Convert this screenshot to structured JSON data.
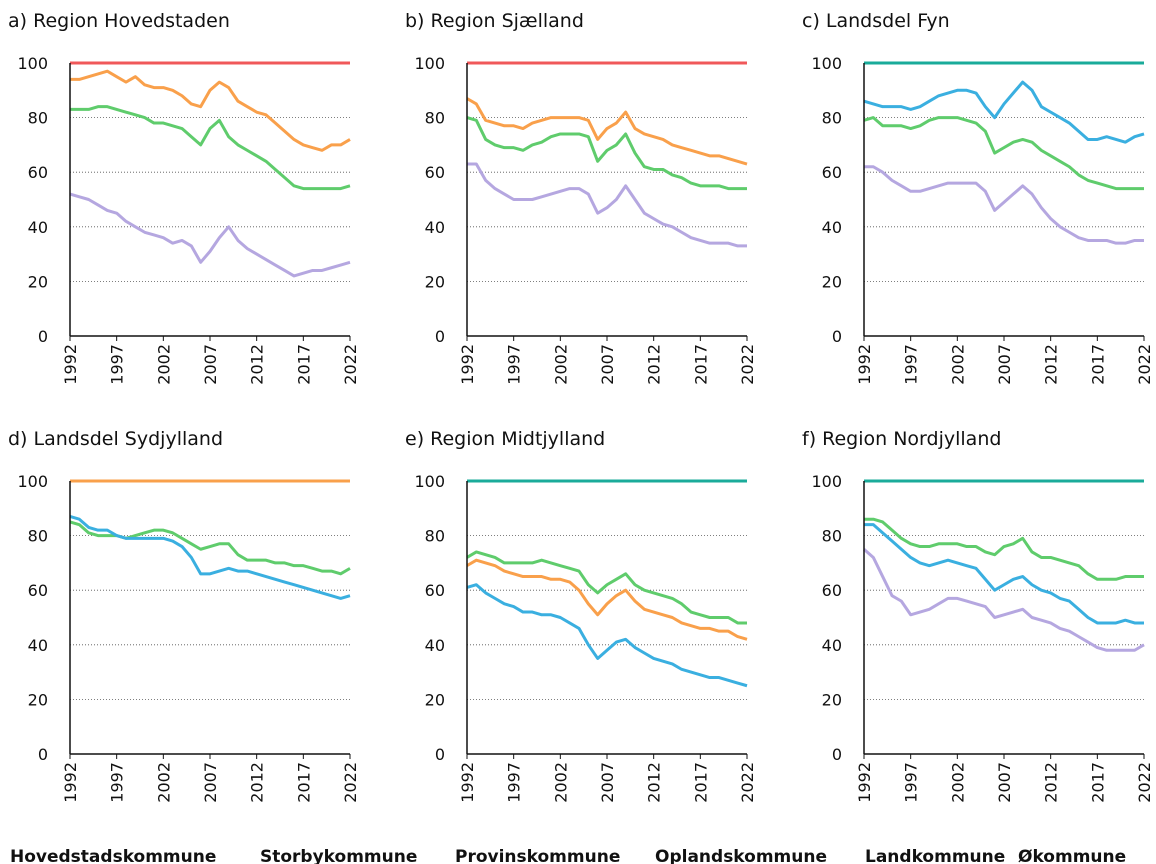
{
  "legend": [
    {
      "name": "Hovedstadskommune",
      "color": "#f0585a"
    },
    {
      "name": "Storbykommune",
      "color": "#1aab9a"
    },
    {
      "name": "Provinskommune",
      "color": "#f9a04b"
    },
    {
      "name": "Oplandskommune",
      "color": "#5fcc6c"
    },
    {
      "name": "Landkommune",
      "color": "#3aafe0"
    },
    {
      "name": "Økommune",
      "color": "#b5a7e0"
    }
  ],
  "chart_data": [
    {
      "type": "line",
      "title": "a) Region Hovedstaden",
      "x": [
        1992,
        1993,
        1994,
        1995,
        1996,
        1997,
        1998,
        1999,
        2000,
        2001,
        2002,
        2003,
        2004,
        2005,
        2006,
        2007,
        2008,
        2009,
        2010,
        2011,
        2012,
        2013,
        2014,
        2015,
        2016,
        2017,
        2018,
        2019,
        2020,
        2021,
        2022
      ],
      "xlim": [
        1992,
        2022
      ],
      "xticks": [
        1992,
        1997,
        2002,
        2007,
        2012,
        2017,
        2022
      ],
      "ylim": [
        0,
        100
      ],
      "yticks": [
        0,
        20,
        40,
        60,
        80,
        100
      ],
      "grid": true,
      "series": [
        {
          "color": "#f0585a",
          "values": [
            100,
            100,
            100,
            100,
            100,
            100,
            100,
            100,
            100,
            100,
            100,
            100,
            100,
            100,
            100,
            100,
            100,
            100,
            100,
            100,
            100,
            100,
            100,
            100,
            100,
            100,
            100,
            100,
            100,
            100,
            100
          ]
        },
        {
          "color": "#f9a04b",
          "values": [
            94,
            94,
            95,
            96,
            97,
            95,
            93,
            95,
            92,
            91,
            91,
            90,
            88,
            85,
            84,
            90,
            93,
            91,
            86,
            84,
            82,
            81,
            78,
            75,
            72,
            70,
            69,
            68,
            70,
            70,
            72
          ]
        },
        {
          "color": "#5fcc6c",
          "values": [
            83,
            83,
            83,
            84,
            84,
            83,
            82,
            81,
            80,
            78,
            78,
            77,
            76,
            73,
            70,
            76,
            79,
            73,
            70,
            68,
            66,
            64,
            61,
            58,
            55,
            54,
            54,
            54,
            54,
            54,
            55
          ]
        },
        {
          "color": "#b5a7e0",
          "values": [
            52,
            51,
            50,
            48,
            46,
            45,
            42,
            40,
            38,
            37,
            36,
            34,
            35,
            33,
            27,
            31,
            36,
            40,
            35,
            32,
            30,
            28,
            26,
            24,
            22,
            23,
            24,
            24,
            25,
            26,
            27
          ]
        }
      ]
    },
    {
      "type": "line",
      "title": "b) Region Sjælland",
      "x": [
        1992,
        1993,
        1994,
        1995,
        1996,
        1997,
        1998,
        1999,
        2000,
        2001,
        2002,
        2003,
        2004,
        2005,
        2006,
        2007,
        2008,
        2009,
        2010,
        2011,
        2012,
        2013,
        2014,
        2015,
        2016,
        2017,
        2018,
        2019,
        2020,
        2021,
        2022
      ],
      "xlim": [
        1992,
        2022
      ],
      "xticks": [
        1992,
        1997,
        2002,
        2007,
        2012,
        2017,
        2022
      ],
      "ylim": [
        0,
        100
      ],
      "yticks": [
        0,
        20,
        40,
        60,
        80,
        100
      ],
      "grid": true,
      "series": [
        {
          "color": "#f0585a",
          "values": [
            100,
            100,
            100,
            100,
            100,
            100,
            100,
            100,
            100,
            100,
            100,
            100,
            100,
            100,
            100,
            100,
            100,
            100,
            100,
            100,
            100,
            100,
            100,
            100,
            100,
            100,
            100,
            100,
            100,
            100,
            100
          ]
        },
        {
          "color": "#f9a04b",
          "values": [
            87,
            85,
            79,
            78,
            77,
            77,
            76,
            78,
            79,
            80,
            80,
            80,
            80,
            79,
            72,
            76,
            78,
            82,
            76,
            74,
            73,
            72,
            70,
            69,
            68,
            67,
            66,
            66,
            65,
            64,
            63
          ]
        },
        {
          "color": "#5fcc6c",
          "values": [
            80,
            79,
            72,
            70,
            69,
            69,
            68,
            70,
            71,
            73,
            74,
            74,
            74,
            73,
            64,
            68,
            70,
            74,
            67,
            62,
            61,
            61,
            59,
            58,
            56,
            55,
            55,
            55,
            54,
            54,
            54
          ]
        },
        {
          "color": "#b5a7e0",
          "values": [
            63,
            63,
            57,
            54,
            52,
            50,
            50,
            50,
            51,
            52,
            53,
            54,
            54,
            52,
            45,
            47,
            50,
            55,
            50,
            45,
            43,
            41,
            40,
            38,
            36,
            35,
            34,
            34,
            34,
            33,
            33
          ]
        }
      ]
    },
    {
      "type": "line",
      "title": "c) Landsdel Fyn",
      "x": [
        1992,
        1993,
        1994,
        1995,
        1996,
        1997,
        1998,
        1999,
        2000,
        2001,
        2002,
        2003,
        2004,
        2005,
        2006,
        2007,
        2008,
        2009,
        2010,
        2011,
        2012,
        2013,
        2014,
        2015,
        2016,
        2017,
        2018,
        2019,
        2020,
        2021,
        2022
      ],
      "xlim": [
        1992,
        2022
      ],
      "xticks": [
        1992,
        1997,
        2002,
        2007,
        2012,
        2017,
        2022
      ],
      "ylim": [
        0,
        100
      ],
      "yticks": [
        0,
        20,
        40,
        60,
        80,
        100
      ],
      "grid": true,
      "series": [
        {
          "color": "#1aab9a",
          "values": [
            100,
            100,
            100,
            100,
            100,
            100,
            100,
            100,
            100,
            100,
            100,
            100,
            100,
            100,
            100,
            100,
            100,
            100,
            100,
            100,
            100,
            100,
            100,
            100,
            100,
            100,
            100,
            100,
            100,
            100,
            100
          ]
        },
        {
          "color": "#3aafe0",
          "values": [
            86,
            85,
            84,
            84,
            84,
            83,
            84,
            86,
            88,
            89,
            90,
            90,
            89,
            84,
            80,
            85,
            89,
            93,
            90,
            84,
            82,
            80,
            78,
            75,
            72,
            72,
            73,
            72,
            71,
            73,
            74
          ]
        },
        {
          "color": "#5fcc6c",
          "values": [
            79,
            80,
            77,
            77,
            77,
            76,
            77,
            79,
            80,
            80,
            80,
            79,
            78,
            75,
            67,
            69,
            71,
            72,
            71,
            68,
            66,
            64,
            62,
            59,
            57,
            56,
            55,
            54,
            54,
            54,
            54
          ]
        },
        {
          "color": "#b5a7e0",
          "values": [
            62,
            62,
            60,
            57,
            55,
            53,
            53,
            54,
            55,
            56,
            56,
            56,
            56,
            53,
            46,
            49,
            52,
            55,
            52,
            47,
            43,
            40,
            38,
            36,
            35,
            35,
            35,
            34,
            34,
            35,
            35
          ]
        }
      ]
    },
    {
      "type": "line",
      "title": "d) Landsdel Sydjylland",
      "x": [
        1992,
        1993,
        1994,
        1995,
        1996,
        1997,
        1998,
        1999,
        2000,
        2001,
        2002,
        2003,
        2004,
        2005,
        2006,
        2007,
        2008,
        2009,
        2010,
        2011,
        2012,
        2013,
        2014,
        2015,
        2016,
        2017,
        2018,
        2019,
        2020,
        2021,
        2022
      ],
      "xlim": [
        1992,
        2022
      ],
      "xticks": [
        1992,
        1997,
        2002,
        2007,
        2012,
        2017,
        2022
      ],
      "ylim": [
        0,
        100
      ],
      "yticks": [
        0,
        20,
        40,
        60,
        80,
        100
      ],
      "grid": true,
      "series": [
        {
          "color": "#f9a04b",
          "values": [
            100,
            100,
            100,
            100,
            100,
            100,
            100,
            100,
            100,
            100,
            100,
            100,
            100,
            100,
            100,
            100,
            100,
            100,
            100,
            100,
            100,
            100,
            100,
            100,
            100,
            100,
            100,
            100,
            100,
            100,
            100
          ]
        },
        {
          "color": "#5fcc6c",
          "values": [
            85,
            84,
            81,
            80,
            80,
            80,
            79,
            80,
            81,
            82,
            82,
            81,
            79,
            77,
            75,
            76,
            77,
            77,
            73,
            71,
            71,
            71,
            70,
            70,
            69,
            69,
            68,
            67,
            67,
            66,
            68
          ]
        },
        {
          "color": "#3aafe0",
          "values": [
            87,
            86,
            83,
            82,
            82,
            80,
            79,
            79,
            79,
            79,
            79,
            78,
            76,
            72,
            66,
            66,
            67,
            68,
            67,
            67,
            66,
            65,
            64,
            63,
            62,
            61,
            60,
            59,
            58,
            57,
            58
          ]
        }
      ]
    },
    {
      "type": "line",
      "title": "e) Region Midtjylland",
      "x": [
        1992,
        1993,
        1994,
        1995,
        1996,
        1997,
        1998,
        1999,
        2000,
        2001,
        2002,
        2003,
        2004,
        2005,
        2006,
        2007,
        2008,
        2009,
        2010,
        2011,
        2012,
        2013,
        2014,
        2015,
        2016,
        2017,
        2018,
        2019,
        2020,
        2021,
        2022
      ],
      "xlim": [
        1992,
        2022
      ],
      "xticks": [
        1992,
        1997,
        2002,
        2007,
        2012,
        2017,
        2022
      ],
      "ylim": [
        0,
        100
      ],
      "yticks": [
        0,
        20,
        40,
        60,
        80,
        100
      ],
      "grid": true,
      "series": [
        {
          "color": "#1aab9a",
          "values": [
            100,
            100,
            100,
            100,
            100,
            100,
            100,
            100,
            100,
            100,
            100,
            100,
            100,
            100,
            100,
            100,
            100,
            100,
            100,
            100,
            100,
            100,
            100,
            100,
            100,
            100,
            100,
            100,
            100,
            100,
            100
          ]
        },
        {
          "color": "#5fcc6c",
          "values": [
            72,
            74,
            73,
            72,
            70,
            70,
            70,
            70,
            71,
            70,
            69,
            68,
            67,
            62,
            59,
            62,
            64,
            66,
            62,
            60,
            59,
            58,
            57,
            55,
            52,
            51,
            50,
            50,
            50,
            48,
            48
          ]
        },
        {
          "color": "#f9a04b",
          "values": [
            69,
            71,
            70,
            69,
            67,
            66,
            65,
            65,
            65,
            64,
            64,
            63,
            60,
            55,
            51,
            55,
            58,
            60,
            56,
            53,
            52,
            51,
            50,
            48,
            47,
            46,
            46,
            45,
            45,
            43,
            42
          ]
        },
        {
          "color": "#3aafe0",
          "values": [
            61,
            62,
            59,
            57,
            55,
            54,
            52,
            52,
            51,
            51,
            50,
            48,
            46,
            40,
            35,
            38,
            41,
            42,
            39,
            37,
            35,
            34,
            33,
            31,
            30,
            29,
            28,
            28,
            27,
            26,
            25
          ]
        }
      ]
    },
    {
      "type": "line",
      "title": "f) Region Nordjylland",
      "x": [
        1992,
        1993,
        1994,
        1995,
        1996,
        1997,
        1998,
        1999,
        2000,
        2001,
        2002,
        2003,
        2004,
        2005,
        2006,
        2007,
        2008,
        2009,
        2010,
        2011,
        2012,
        2013,
        2014,
        2015,
        2016,
        2017,
        2018,
        2019,
        2020,
        2021,
        2022
      ],
      "xlim": [
        1992,
        2022
      ],
      "xticks": [
        1992,
        1997,
        2002,
        2007,
        2012,
        2017,
        2022
      ],
      "ylim": [
        0,
        100
      ],
      "yticks": [
        0,
        20,
        40,
        60,
        80,
        100
      ],
      "grid": true,
      "series": [
        {
          "color": "#1aab9a",
          "values": [
            100,
            100,
            100,
            100,
            100,
            100,
            100,
            100,
            100,
            100,
            100,
            100,
            100,
            100,
            100,
            100,
            100,
            100,
            100,
            100,
            100,
            100,
            100,
            100,
            100,
            100,
            100,
            100,
            100,
            100,
            100
          ]
        },
        {
          "color": "#5fcc6c",
          "values": [
            86,
            86,
            85,
            82,
            79,
            77,
            76,
            76,
            77,
            77,
            77,
            76,
            76,
            74,
            73,
            76,
            77,
            79,
            74,
            72,
            72,
            71,
            70,
            69,
            66,
            64,
            64,
            64,
            65,
            65,
            65
          ]
        },
        {
          "color": "#3aafe0",
          "values": [
            84,
            84,
            81,
            78,
            75,
            72,
            70,
            69,
            70,
            71,
            70,
            69,
            68,
            64,
            60,
            62,
            64,
            65,
            62,
            60,
            59,
            57,
            56,
            53,
            50,
            48,
            48,
            48,
            49,
            48,
            48
          ]
        },
        {
          "color": "#b5a7e0",
          "values": [
            75,
            72,
            65,
            58,
            56,
            51,
            52,
            53,
            55,
            57,
            57,
            56,
            55,
            54,
            50,
            51,
            52,
            53,
            50,
            49,
            48,
            46,
            45,
            43,
            41,
            39,
            38,
            38,
            38,
            38,
            40
          ]
        }
      ]
    }
  ]
}
